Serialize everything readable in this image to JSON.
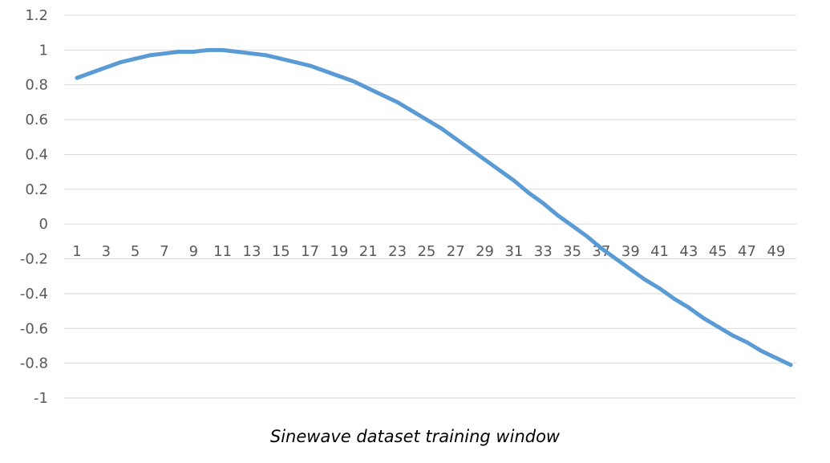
{
  "caption": "Sinewave dataset training window",
  "colors": {
    "line": "#5b9bd5",
    "grid": "#d9d9d9",
    "tick_text": "#595959"
  },
  "chart_data": {
    "type": "line",
    "title": "",
    "xlabel": "",
    "ylabel": "",
    "x_tick_labels": [
      "1",
      "3",
      "5",
      "7",
      "9",
      "11",
      "13",
      "15",
      "17",
      "19",
      "21",
      "23",
      "25",
      "27",
      "29",
      "31",
      "33",
      "35",
      "37",
      "39",
      "41",
      "43",
      "45",
      "47",
      "49"
    ],
    "y_ticks": [
      1.2,
      1,
      0.8,
      0.6,
      0.4,
      0.2,
      0,
      -0.2,
      -0.4,
      -0.6,
      -0.8,
      -1
    ],
    "y_tick_labels": [
      "1.2",
      "1",
      "0.8",
      "0.6",
      "0.4",
      "0.2",
      "0",
      "-0.2",
      "-0.4",
      "-0.6",
      "-0.8",
      "-1"
    ],
    "ylim": [
      -1,
      1.2
    ],
    "xlim": [
      1,
      50
    ],
    "grid": true,
    "legend": "none",
    "x": [
      1,
      2,
      3,
      4,
      5,
      6,
      7,
      8,
      9,
      10,
      11,
      12,
      13,
      14,
      15,
      16,
      17,
      18,
      19,
      20,
      21,
      22,
      23,
      24,
      25,
      26,
      27,
      28,
      29,
      30,
      31,
      32,
      33,
      34,
      35,
      36,
      37,
      38,
      39,
      40,
      41,
      42,
      43,
      44,
      45,
      46,
      47,
      48,
      49,
      50
    ],
    "series": [
      {
        "values": [
          0.84,
          0.87,
          0.9,
          0.93,
          0.95,
          0.97,
          0.98,
          0.99,
          0.99,
          1.0,
          1.0,
          0.99,
          0.98,
          0.97,
          0.95,
          0.93,
          0.91,
          0.88,
          0.85,
          0.82,
          0.78,
          0.74,
          0.7,
          0.65,
          0.6,
          0.55,
          0.49,
          0.43,
          0.37,
          0.31,
          0.25,
          0.18,
          0.12,
          0.05,
          -0.01,
          -0.07,
          -0.14,
          -0.2,
          -0.26,
          -0.32,
          -0.37,
          -0.43,
          -0.48,
          -0.54,
          -0.59,
          -0.64,
          -0.68,
          -0.73,
          -0.77,
          -0.81
        ]
      }
    ]
  }
}
